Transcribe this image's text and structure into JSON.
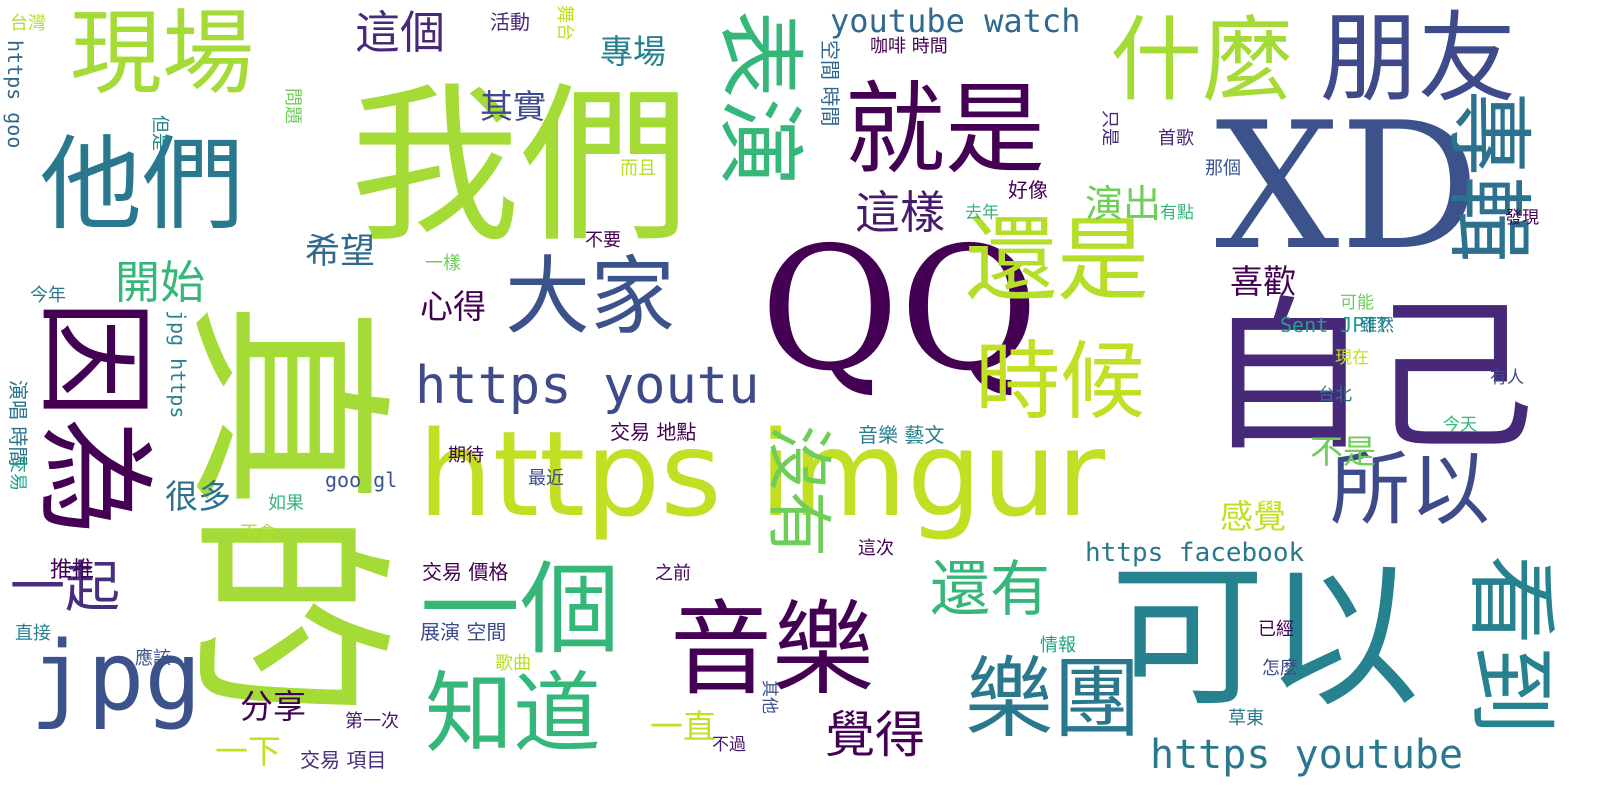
{
  "words": [
    {
      "text": "我們",
      "color": "#a5db36"
    },
    {
      "text": "真的",
      "color": "#a5db36"
    },
    {
      "text": "XD",
      "color": "#3b528b"
    },
    {
      "text": "QQ",
      "color": "#440154"
    },
    {
      "text": "自己",
      "color": "#482878"
    },
    {
      "text": "https imgur",
      "color": "#c2df23"
    },
    {
      "text": "可以",
      "color": "#26828e"
    },
    {
      "text": "現場",
      "color": "#a5db36"
    },
    {
      "text": "他們",
      "color": "#2a788e"
    },
    {
      "text": "因為",
      "color": "#440154"
    },
    {
      "text": "就是",
      "color": "#440154"
    },
    {
      "text": "朋友",
      "color": "#3e4a89"
    },
    {
      "text": "什麼",
      "color": "#a5db36"
    },
    {
      "text": "表演",
      "color": "#35b779"
    },
    {
      "text": "專輯",
      "color": "#2c728e"
    },
    {
      "text": "還是",
      "color": "#b5de2b"
    },
    {
      "text": "時候",
      "color": "#c2df23"
    },
    {
      "text": "大家",
      "color": "#3b528b"
    },
    {
      "text": "一個",
      "color": "#35b779"
    },
    {
      "text": "音樂",
      "color": "#440154"
    },
    {
      "text": "樂團",
      "color": "#2a788e"
    },
    {
      "text": "知道",
      "color": "#35b779"
    },
    {
      "text": "沒有",
      "color": "#6ece58"
    },
    {
      "text": "所以",
      "color": "#3e4a89"
    },
    {
      "text": "看到",
      "color": "#26828e"
    },
    {
      "text": "還有",
      "color": "#35b779"
    },
    {
      "text": "jpg",
      "color": "#3b528b"
    },
    {
      "text": "一起",
      "color": "#472d7b"
    },
    {
      "text": "https youtu",
      "color": "#3e4a89"
    },
    {
      "text": "https youtube",
      "color": "#2a788e"
    },
    {
      "text": "youtube watch",
      "color": "#31688e"
    },
    {
      "text": "覺得",
      "color": "#440154"
    },
    {
      "text": "開始",
      "color": "#35b779"
    },
    {
      "text": "這樣",
      "color": "#481a6c"
    },
    {
      "text": "這個",
      "color": "#482878"
    },
    {
      "text": "演出",
      "color": "#6ece58"
    },
    {
      "text": "希望",
      "color": "#31688e"
    },
    {
      "text": "專場",
      "color": "#26828e"
    },
    {
      "text": "其實",
      "color": "#3e4a89"
    },
    {
      "text": "心得",
      "color": "#440154"
    },
    {
      "text": "喜歡",
      "color": "#440154"
    },
    {
      "text": "感覺",
      "color": "#c2df23"
    },
    {
      "text": "不是",
      "color": "#6ece58"
    },
    {
      "text": "很多",
      "color": "#2c728e"
    },
    {
      "text": "分享",
      "color": "#440154"
    },
    {
      "text": "一下",
      "color": "#c2df23"
    },
    {
      "text": "一直",
      "color": "#c2df23"
    },
    {
      "text": "推推",
      "color": "#440154"
    },
    {
      "text": "https facebook",
      "color": "#2a788e"
    },
    {
      "text": "Sent JPTT",
      "color": "#1fa187"
    },
    {
      "text": "goo gl",
      "color": "#3b528b"
    },
    {
      "text": "https goo",
      "color": "#31688e"
    },
    {
      "text": "jpg https",
      "color": "#26828e"
    },
    {
      "text": "音樂 藝文",
      "color": "#26828e"
    },
    {
      "text": "交易 地點",
      "color": "#440154"
    },
    {
      "text": "交易 價格",
      "color": "#440154"
    },
    {
      "text": "交易 項目",
      "color": "#472d7b"
    },
    {
      "text": "展演 空間",
      "color": "#3e4a89"
    },
    {
      "text": "咖啡 時間",
      "color": "#440154"
    },
    {
      "text": "空間 時間",
      "color": "#31688e"
    },
    {
      "text": "演唱 時間",
      "color": "#2c728e"
    },
    {
      "text": "交易",
      "color": "#1fa187"
    },
    {
      "text": "活動",
      "color": "#482878"
    },
    {
      "text": "舞台",
      "color": "#c2df23"
    },
    {
      "text": "台灣",
      "color": "#b5de2b"
    },
    {
      "text": "問題",
      "color": "#6ece58"
    },
    {
      "text": "但是",
      "color": "#26828e"
    },
    {
      "text": "首歌",
      "color": "#482878"
    },
    {
      "text": "那個",
      "color": "#3b528b"
    },
    {
      "text": "只是",
      "color": "#482878"
    },
    {
      "text": "好像",
      "color": "#440154"
    },
    {
      "text": "去年",
      "color": "#35b779"
    },
    {
      "text": "有點",
      "color": "#35b779"
    },
    {
      "text": "發現",
      "color": "#440154"
    },
    {
      "text": "可能",
      "color": "#6ece58"
    },
    {
      "text": "雖然",
      "color": "#2a788e"
    },
    {
      "text": "現在",
      "color": "#c2df23"
    },
    {
      "text": "有人",
      "color": "#3e4a89"
    },
    {
      "text": "台北",
      "color": "#2a788e"
    },
    {
      "text": "今天",
      "color": "#35b779"
    },
    {
      "text": "今年",
      "color": "#2a788e"
    },
    {
      "text": "而且",
      "color": "#b5de2b"
    },
    {
      "text": "不要",
      "color": "#440154"
    },
    {
      "text": "一樣",
      "color": "#6ece58"
    },
    {
      "text": "期待",
      "color": "#440154"
    },
    {
      "text": "最近",
      "color": "#3e4a89"
    },
    {
      "text": "如果",
      "color": "#35b779"
    },
    {
      "text": "不會",
      "color": "#b5de2b"
    },
    {
      "text": "之前",
      "color": "#440154"
    },
    {
      "text": "這次",
      "color": "#440154"
    },
    {
      "text": "直接",
      "color": "#26828e"
    },
    {
      "text": "應該",
      "color": "#3b528b"
    },
    {
      "text": "歌曲",
      "color": "#b5de2b"
    },
    {
      "text": "第一次",
      "color": "#481a6c"
    },
    {
      "text": "其他",
      "color": "#3b528b"
    },
    {
      "text": "不過",
      "color": "#481a6c"
    },
    {
      "text": "情報",
      "color": "#1fa187"
    },
    {
      "text": "已經",
      "color": "#440154"
    },
    {
      "text": "怎麼",
      "color": "#3e4a89"
    },
    {
      "text": "草東",
      "color": "#2a788e"
    }
  ]
}
